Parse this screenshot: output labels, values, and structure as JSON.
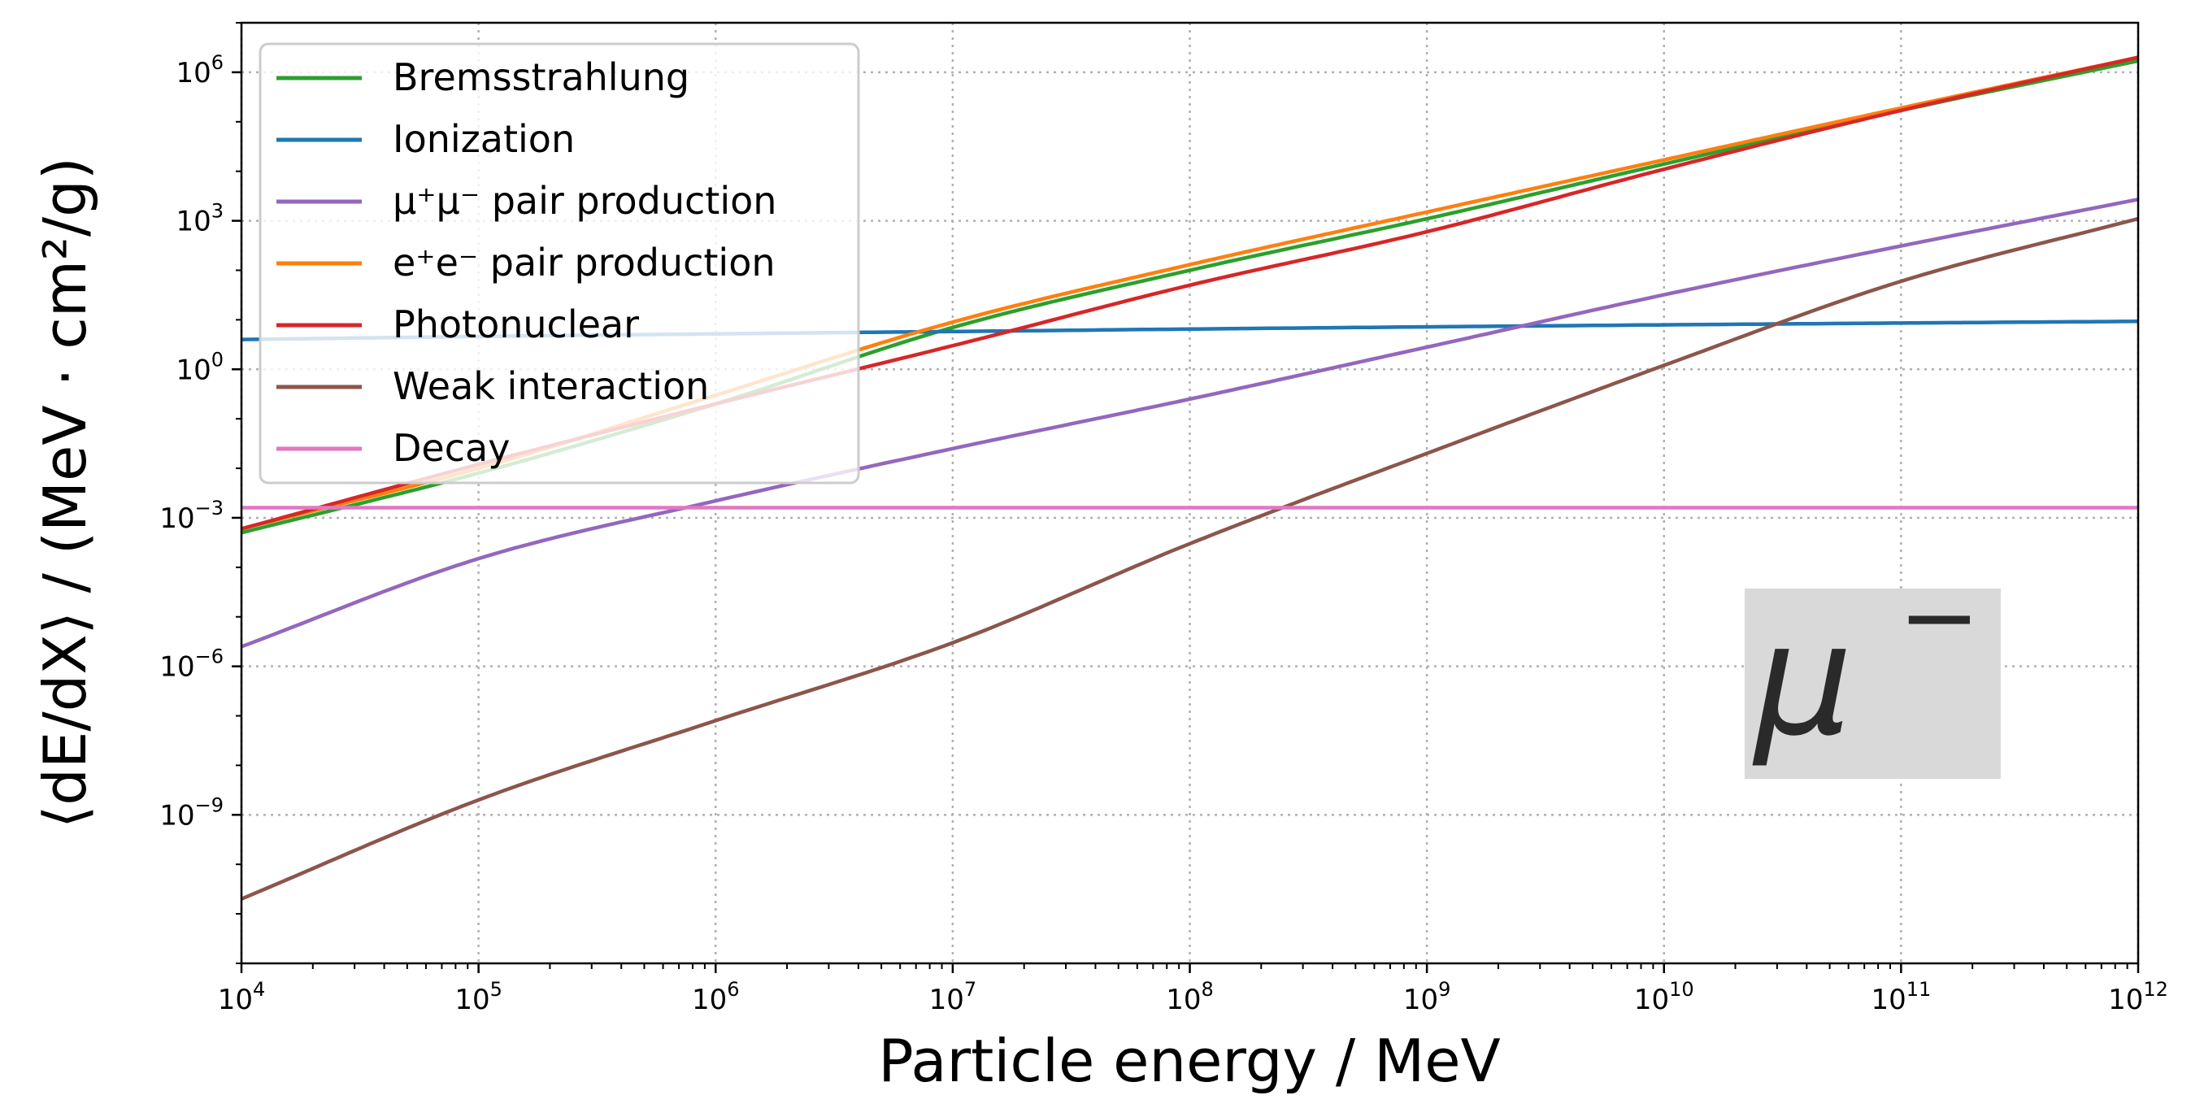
{
  "chart_data": {
    "type": "line",
    "xlabel": "Particle energy / MeV",
    "ylabel": "⟨dE/dX⟩ / (MeV · cm²/g)",
    "x_scale": "log",
    "y_scale": "log",
    "xlim": [
      10000,
      1000000000000
    ],
    "ylim": [
      1e-12,
      10000000
    ],
    "x_ticks": [
      {
        "value": 10000,
        "base": "10",
        "exp": "4"
      },
      {
        "value": 100000,
        "base": "10",
        "exp": "5"
      },
      {
        "value": 1000000,
        "base": "10",
        "exp": "6"
      },
      {
        "value": 10000000,
        "base": "10",
        "exp": "7"
      },
      {
        "value": 100000000,
        "base": "10",
        "exp": "8"
      },
      {
        "value": 1000000000,
        "base": "10",
        "exp": "9"
      },
      {
        "value": 10000000000,
        "base": "10",
        "exp": "10"
      },
      {
        "value": 100000000000,
        "base": "10",
        "exp": "11"
      },
      {
        "value": 1000000000000,
        "base": "10",
        "exp": "12"
      }
    ],
    "y_ticks": [
      {
        "value": 1e-09,
        "base": "10",
        "exp": "−9"
      },
      {
        "value": 1e-06,
        "base": "10",
        "exp": "−6"
      },
      {
        "value": 0.001,
        "base": "10",
        "exp": "−3"
      },
      {
        "value": 1,
        "base": "10",
        "exp": "0"
      },
      {
        "value": 1000,
        "base": "10",
        "exp": "3"
      },
      {
        "value": 1000000,
        "base": "10",
        "exp": "6"
      }
    ],
    "grid": true,
    "legend_position": "top-left",
    "annotation": {
      "text": "μ",
      "superscript": "−"
    },
    "series": [
      {
        "name": "Bremsstrahlung",
        "color": "#2ca02c",
        "x": [
          10000,
          100000,
          1000000,
          10000000,
          100000000,
          1000000000,
          10000000000,
          100000000000,
          1000000000000
        ],
        "y": [
          0.0005,
          0.008,
          0.2,
          7,
          100,
          1100,
          14000,
          170000,
          1700000
        ]
      },
      {
        "name": "Ionization",
        "color": "#1f77b4",
        "x": [
          10000,
          100000,
          1000000,
          10000000,
          100000000,
          1000000000,
          10000000000,
          100000000000,
          1000000000000
        ],
        "y": [
          4.0,
          4.6,
          5.2,
          5.8,
          6.5,
          7.2,
          7.9,
          8.6,
          9.3
        ]
      },
      {
        "name": "μ⁺μ⁻ pair production",
        "color": "#9467bd",
        "x": [
          10000,
          100000,
          1000000,
          10000000,
          100000000,
          1000000000,
          10000000000,
          100000000000,
          1000000000000
        ],
        "y": [
          2.5e-06,
          0.00015,
          0.0022,
          0.025,
          0.25,
          2.8,
          32,
          310,
          2700
        ]
      },
      {
        "name": "e⁺e⁻ pair production",
        "color": "#ff7f0e",
        "x": [
          10000,
          100000,
          1000000,
          10000000,
          100000000,
          1000000000,
          10000000000,
          100000000000,
          1000000000000
        ],
        "y": [
          0.0006,
          0.01,
          0.3,
          9,
          130,
          1500,
          17000,
          190000,
          2000000
        ]
      },
      {
        "name": "Photonuclear",
        "color": "#d62728",
        "x": [
          10000,
          100000,
          1000000,
          10000000,
          100000000,
          1000000000,
          10000000000,
          100000000000,
          1000000000000
        ],
        "y": [
          0.0006,
          0.012,
          0.2,
          3,
          50,
          600,
          11000,
          170000,
          2000000
        ]
      },
      {
        "name": "Weak interaction",
        "color": "#8c564b",
        "x": [
          10000,
          100000,
          1000000,
          10000000,
          100000000,
          1000000000,
          10000000000,
          100000000000,
          1000000000000
        ],
        "y": [
          2e-11,
          2e-09,
          8e-08,
          3e-06,
          0.0003,
          0.02,
          1.2,
          60,
          1100
        ]
      },
      {
        "name": "Decay",
        "color": "#e377c2",
        "x": [
          10000,
          1000000000000
        ],
        "y": [
          0.0016,
          0.0016
        ]
      }
    ]
  }
}
